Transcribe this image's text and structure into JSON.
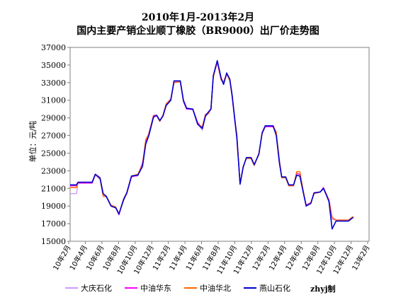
{
  "chart_data": {
    "type": "line",
    "title": "2010年1月-2013年2月",
    "subtitle": "国内主要产销企业顺丁橡胶（BR9000）出厂价走势图",
    "ylabel": "单位：元/吨",
    "ylim": [
      15000,
      37000
    ],
    "yticks": [
      15000,
      17000,
      19000,
      21000,
      23000,
      25000,
      27000,
      29000,
      31000,
      33000,
      35000,
      37000
    ],
    "x_tick_labels": [
      "10年2月",
      "10年4月",
      "10年6月",
      "10年8月",
      "10年10月",
      "10年12月",
      "11年2月",
      "11年4月",
      "11年6月",
      "11年8月",
      "11年10月",
      "11年12月",
      "12年2月",
      "12年4月",
      "12年6月",
      "12年8月",
      "12年10月",
      "12年12月",
      "13年2月"
    ],
    "x_range": [
      0,
      38
    ],
    "grid": false,
    "legend_position": "bottom",
    "credit": "zhyj制",
    "series": [
      {
        "name": "大庆石化",
        "color": "#cc99ff",
        "points": [
          [
            0,
            20400
          ],
          [
            0.8,
            20400
          ],
          [
            1,
            21600
          ],
          [
            2.8,
            21600
          ],
          [
            3.2,
            22500
          ],
          [
            3.8,
            22000
          ],
          [
            4.2,
            20200
          ],
          [
            4.6,
            20000
          ],
          [
            5.2,
            19000
          ],
          [
            5.8,
            18800
          ],
          [
            6.2,
            18100
          ],
          [
            6.8,
            19900
          ],
          [
            7.2,
            20500
          ],
          [
            7.8,
            22400
          ],
          [
            8.6,
            22400
          ],
          [
            9.2,
            24000
          ],
          [
            9.6,
            26000
          ],
          [
            10,
            27300
          ],
          [
            10.6,
            29100
          ],
          [
            11,
            29200
          ],
          [
            11.4,
            28600
          ],
          [
            11.8,
            29200
          ],
          [
            12.2,
            30600
          ],
          [
            12.8,
            31200
          ],
          [
            13.2,
            33100
          ],
          [
            14,
            33100
          ],
          [
            14.4,
            30800
          ],
          [
            14.8,
            30000
          ],
          [
            15.6,
            29900
          ],
          [
            16.2,
            28400
          ],
          [
            16.8,
            27600
          ],
          [
            17.2,
            29200
          ],
          [
            17.6,
            29500
          ],
          [
            17.9,
            30000
          ],
          [
            18.2,
            33800
          ],
          [
            18.7,
            35300
          ],
          [
            19.2,
            33500
          ],
          [
            19.5,
            33000
          ],
          [
            19.9,
            33900
          ],
          [
            20.3,
            33300
          ],
          [
            20.6,
            31500
          ],
          [
            20.9,
            29000
          ],
          [
            21.2,
            27000
          ],
          [
            21.6,
            21400
          ],
          [
            22,
            23500
          ],
          [
            22.4,
            24400
          ],
          [
            23,
            24400
          ],
          [
            23.4,
            23600
          ],
          [
            24,
            24900
          ],
          [
            24.4,
            27300
          ],
          [
            24.8,
            28100
          ],
          [
            25.8,
            28100
          ],
          [
            26.2,
            27200
          ],
          [
            26.6,
            24400
          ],
          [
            26.9,
            22300
          ],
          [
            27.4,
            22200
          ],
          [
            27.8,
            21300
          ],
          [
            28.4,
            21300
          ],
          [
            28.8,
            22700
          ],
          [
            29.2,
            22600
          ],
          [
            29.6,
            20800
          ],
          [
            30,
            19000
          ],
          [
            30.6,
            19300
          ],
          [
            31,
            20400
          ],
          [
            31.8,
            20600
          ],
          [
            32.2,
            21000
          ],
          [
            32.5,
            20400
          ],
          [
            32.9,
            19600
          ],
          [
            33.3,
            17500
          ],
          [
            33.8,
            17400
          ],
          [
            35.4,
            17400
          ],
          [
            35.8,
            17600
          ],
          [
            36,
            17700
          ]
        ]
      },
      {
        "name": "中油华东",
        "color": "#ff00ff",
        "points": [
          [
            0,
            21300
          ],
          [
            0.8,
            21300
          ],
          [
            1,
            21600
          ],
          [
            2.8,
            21600
          ],
          [
            3.2,
            22600
          ],
          [
            3.8,
            22100
          ],
          [
            4.2,
            20400
          ],
          [
            4.6,
            20100
          ],
          [
            5.2,
            19000
          ],
          [
            5.8,
            18800
          ],
          [
            6.2,
            18000
          ],
          [
            6.8,
            19800
          ],
          [
            7.2,
            20400
          ],
          [
            7.8,
            22300
          ],
          [
            8.6,
            22500
          ],
          [
            9.2,
            23800
          ],
          [
            9.6,
            26300
          ],
          [
            10,
            27200
          ],
          [
            10.6,
            29300
          ],
          [
            11,
            29300
          ],
          [
            11.4,
            28700
          ],
          [
            11.8,
            29300
          ],
          [
            12.2,
            30500
          ],
          [
            12.8,
            31100
          ],
          [
            13.2,
            33000
          ],
          [
            14,
            33100
          ],
          [
            14.4,
            30900
          ],
          [
            14.8,
            30000
          ],
          [
            15.6,
            30000
          ],
          [
            16.2,
            28500
          ],
          [
            16.8,
            27800
          ],
          [
            17.2,
            29400
          ],
          [
            17.6,
            29600
          ],
          [
            17.9,
            30000
          ],
          [
            18.2,
            33700
          ],
          [
            18.7,
            35300
          ],
          [
            19.2,
            33300
          ],
          [
            19.5,
            33000
          ],
          [
            19.9,
            34000
          ],
          [
            20.3,
            33300
          ],
          [
            20.6,
            31300
          ],
          [
            20.9,
            28900
          ],
          [
            21.2,
            26700
          ],
          [
            21.6,
            21500
          ],
          [
            22,
            23500
          ],
          [
            22.4,
            24400
          ],
          [
            23,
            24400
          ],
          [
            23.4,
            23600
          ],
          [
            24,
            25000
          ],
          [
            24.4,
            27200
          ],
          [
            24.8,
            28000
          ],
          [
            25.8,
            28000
          ],
          [
            26.2,
            27200
          ],
          [
            26.6,
            24000
          ],
          [
            26.9,
            22200
          ],
          [
            27.4,
            22200
          ],
          [
            27.8,
            21300
          ],
          [
            28.4,
            21300
          ],
          [
            28.8,
            22700
          ],
          [
            29.2,
            22600
          ],
          [
            29.6,
            20800
          ],
          [
            30,
            19100
          ],
          [
            30.6,
            19400
          ],
          [
            31,
            20400
          ],
          [
            31.8,
            20600
          ],
          [
            32.2,
            21100
          ],
          [
            32.5,
            20500
          ],
          [
            32.9,
            19700
          ],
          [
            33.3,
            17700
          ],
          [
            33.8,
            17400
          ],
          [
            35.4,
            17400
          ],
          [
            35.8,
            17700
          ],
          [
            36,
            17800
          ]
        ]
      },
      {
        "name": "中油华北",
        "color": "#ff6600",
        "points": [
          [
            0,
            21100
          ],
          [
            0.8,
            21100
          ],
          [
            1,
            21700
          ],
          [
            2.8,
            21700
          ],
          [
            3.2,
            22600
          ],
          [
            3.8,
            22100
          ],
          [
            4.2,
            20100
          ],
          [
            4.6,
            20100
          ],
          [
            5.2,
            19100
          ],
          [
            5.8,
            18900
          ],
          [
            6.2,
            18100
          ],
          [
            6.8,
            19800
          ],
          [
            7.2,
            20500
          ],
          [
            7.8,
            22400
          ],
          [
            8.6,
            22600
          ],
          [
            9.2,
            23700
          ],
          [
            9.6,
            26500
          ],
          [
            10,
            27200
          ],
          [
            10.6,
            29200
          ],
          [
            11,
            29300
          ],
          [
            11.4,
            28600
          ],
          [
            11.8,
            29300
          ],
          [
            12.2,
            30600
          ],
          [
            12.8,
            31100
          ],
          [
            13.2,
            33000
          ],
          [
            14,
            33100
          ],
          [
            14.4,
            31000
          ],
          [
            14.8,
            30100
          ],
          [
            15.6,
            30000
          ],
          [
            16.2,
            28300
          ],
          [
            16.8,
            28000
          ],
          [
            17.2,
            29400
          ],
          [
            17.6,
            29500
          ],
          [
            17.9,
            30100
          ],
          [
            18.2,
            33600
          ],
          [
            18.7,
            35400
          ],
          [
            19.2,
            33300
          ],
          [
            19.5,
            33100
          ],
          [
            19.9,
            34000
          ],
          [
            20.3,
            33200
          ],
          [
            20.6,
            31400
          ],
          [
            20.9,
            29000
          ],
          [
            21.2,
            27100
          ],
          [
            21.6,
            21500
          ],
          [
            22,
            23500
          ],
          [
            22.4,
            24400
          ],
          [
            23,
            24400
          ],
          [
            23.4,
            23600
          ],
          [
            24,
            25000
          ],
          [
            24.4,
            27200
          ],
          [
            24.8,
            28100
          ],
          [
            25.8,
            28100
          ],
          [
            26.2,
            27400
          ],
          [
            26.6,
            24100
          ],
          [
            26.9,
            22200
          ],
          [
            27.4,
            22200
          ],
          [
            27.8,
            21300
          ],
          [
            28.4,
            21300
          ],
          [
            28.8,
            22900
          ],
          [
            29.2,
            22900
          ],
          [
            29.6,
            20900
          ],
          [
            30,
            19000
          ],
          [
            30.6,
            19400
          ],
          [
            31,
            20400
          ],
          [
            31.8,
            20600
          ],
          [
            32.2,
            21000
          ],
          [
            32.5,
            20500
          ],
          [
            32.9,
            19600
          ],
          [
            33.3,
            17700
          ],
          [
            33.8,
            17400
          ],
          [
            35.4,
            17400
          ],
          [
            35.8,
            17700
          ],
          [
            36,
            17800
          ]
        ]
      },
      {
        "name": "燕山石化",
        "color": "#0000cc",
        "points": [
          [
            0,
            21400
          ],
          [
            0.8,
            21400
          ],
          [
            1,
            21700
          ],
          [
            2.8,
            21700
          ],
          [
            3.2,
            22600
          ],
          [
            3.8,
            22200
          ],
          [
            4.2,
            20400
          ],
          [
            4.6,
            20100
          ],
          [
            5.2,
            19000
          ],
          [
            5.8,
            18800
          ],
          [
            6.2,
            18100
          ],
          [
            6.8,
            19700
          ],
          [
            7.2,
            20500
          ],
          [
            7.8,
            22400
          ],
          [
            8.6,
            22500
          ],
          [
            9.2,
            23500
          ],
          [
            9.6,
            26000
          ],
          [
            10,
            27000
          ],
          [
            10.6,
            29100
          ],
          [
            11,
            29300
          ],
          [
            11.4,
            28700
          ],
          [
            11.8,
            29200
          ],
          [
            12.2,
            30400
          ],
          [
            12.8,
            31000
          ],
          [
            13.2,
            33200
          ],
          [
            14,
            33200
          ],
          [
            14.4,
            31000
          ],
          [
            14.8,
            30100
          ],
          [
            15.6,
            30000
          ],
          [
            16.2,
            28300
          ],
          [
            16.8,
            27800
          ],
          [
            17.2,
            29200
          ],
          [
            17.6,
            29700
          ],
          [
            17.9,
            30000
          ],
          [
            18.2,
            33800
          ],
          [
            18.7,
            35500
          ],
          [
            19.2,
            33500
          ],
          [
            19.5,
            32800
          ],
          [
            19.9,
            34100
          ],
          [
            20.3,
            33400
          ],
          [
            20.6,
            31500
          ],
          [
            20.9,
            29100
          ],
          [
            21.2,
            26700
          ],
          [
            21.6,
            21500
          ],
          [
            22,
            23400
          ],
          [
            22.4,
            24500
          ],
          [
            23,
            24500
          ],
          [
            23.4,
            23700
          ],
          [
            24,
            24900
          ],
          [
            24.4,
            27300
          ],
          [
            24.8,
            28100
          ],
          [
            25.8,
            28100
          ],
          [
            26.2,
            27000
          ],
          [
            26.6,
            23900
          ],
          [
            26.9,
            22300
          ],
          [
            27.4,
            22300
          ],
          [
            27.8,
            21400
          ],
          [
            28.4,
            21400
          ],
          [
            28.8,
            22500
          ],
          [
            29.2,
            22400
          ],
          [
            29.6,
            20700
          ],
          [
            30,
            19000
          ],
          [
            30.6,
            19300
          ],
          [
            31,
            20500
          ],
          [
            31.8,
            20600
          ],
          [
            32.2,
            21000
          ],
          [
            32.5,
            20400
          ],
          [
            32.9,
            19500
          ],
          [
            33.3,
            16400
          ],
          [
            33.8,
            17300
          ],
          [
            35.4,
            17300
          ],
          [
            35.8,
            17600
          ],
          [
            36,
            17700
          ]
        ]
      }
    ]
  }
}
